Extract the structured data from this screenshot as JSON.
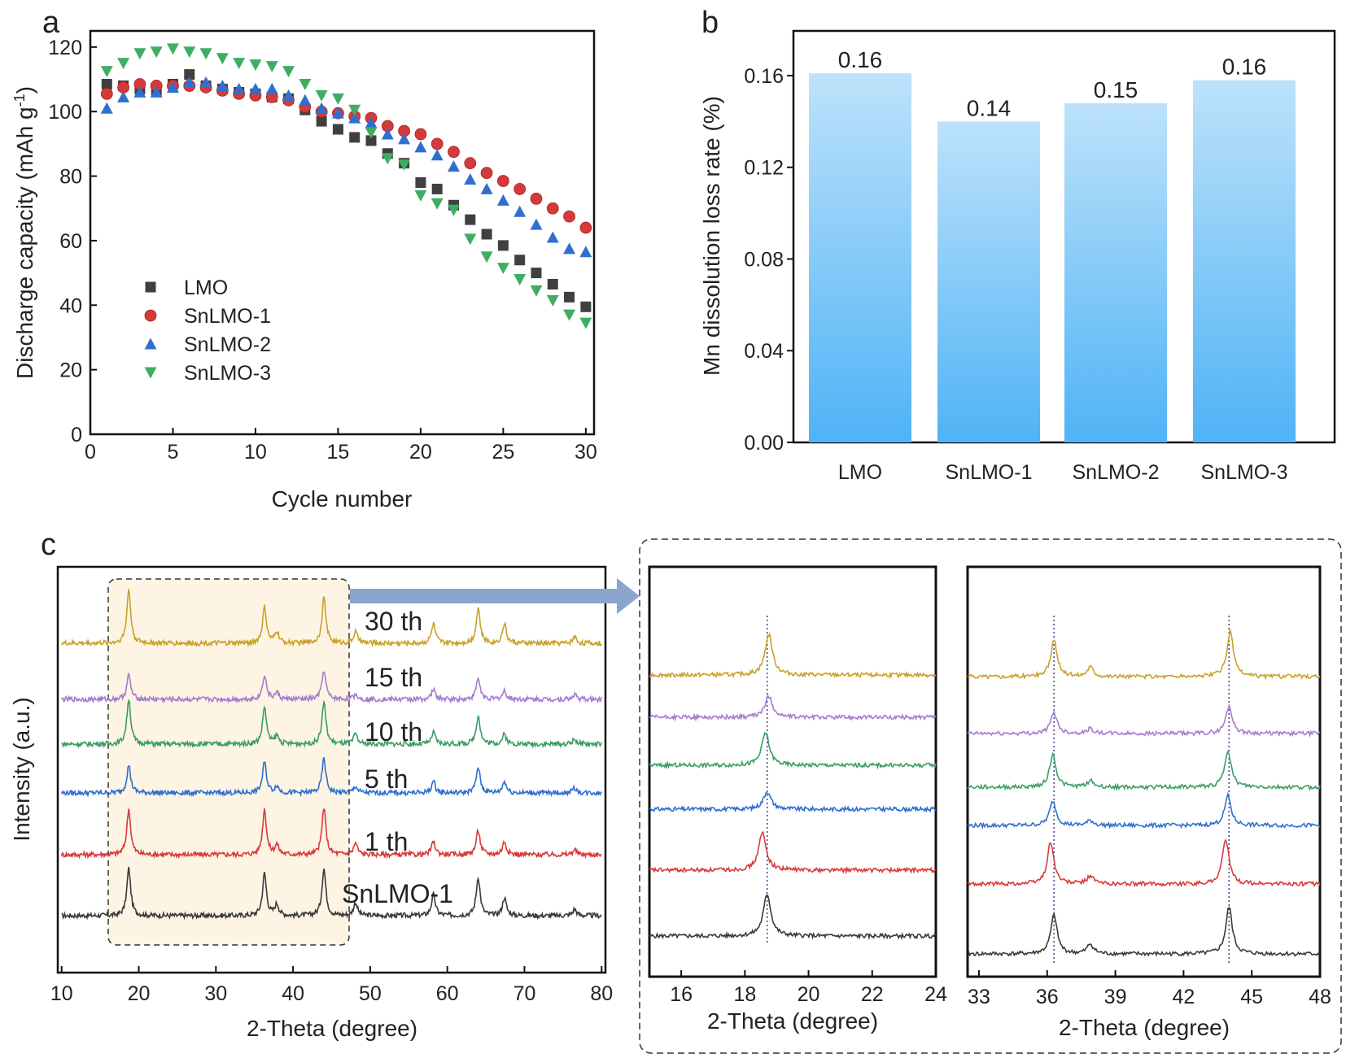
{
  "figure": {
    "panel_labels": [
      "a",
      "b",
      "c"
    ]
  },
  "chart_data": [
    {
      "panel": "a",
      "type": "scatter",
      "xlabel": "Cycle number",
      "ylabel": "Discharge capacity (mAh g",
      "ylabel_sup": "-1",
      "ylabel_tail": ")",
      "xlim": [
        0,
        30.5
      ],
      "ylim": [
        0,
        125
      ],
      "xticks": [
        0,
        5,
        10,
        15,
        20,
        25,
        30
      ],
      "yticks": [
        0,
        20,
        40,
        60,
        80,
        100,
        120
      ],
      "legend_position": "lower-left",
      "x": [
        1,
        2,
        3,
        4,
        5,
        6,
        7,
        8,
        9,
        10,
        11,
        12,
        13,
        14,
        15,
        16,
        17,
        18,
        19,
        20,
        21,
        22,
        23,
        24,
        25,
        26,
        27,
        28,
        29,
        30
      ],
      "series": [
        {
          "name": "LMO",
          "marker": "square",
          "color": "#404040",
          "values": [
            108.5,
            108,
            107,
            106.5,
            108.5,
            111.5,
            108,
            107,
            106,
            105.5,
            104.5,
            104,
            100.5,
            97,
            94.5,
            92,
            91,
            87,
            84,
            78,
            76,
            71,
            66.5,
            62,
            58.5,
            54,
            50,
            46.5,
            42.5,
            39.5
          ]
        },
        {
          "name": "SnLMO-1",
          "marker": "circle",
          "color": "#d33a3a",
          "values": [
            105.5,
            107.5,
            108.5,
            108,
            108,
            108,
            107.5,
            106.5,
            105.5,
            105,
            104.5,
            103.5,
            101.5,
            100,
            99.5,
            98.5,
            98,
            95.5,
            94,
            93,
            90,
            87.5,
            84,
            81,
            78.5,
            76,
            73,
            70,
            67.5,
            64
          ]
        },
        {
          "name": "SnLMO-2",
          "marker": "triangle-up",
          "color": "#2f6fcf",
          "values": [
            101,
            104.5,
            106,
            106,
            107.5,
            109,
            109,
            108,
            107,
            107,
            107,
            105,
            103.5,
            101,
            99.5,
            98,
            96.5,
            93,
            91.5,
            89,
            86.5,
            83,
            79,
            76,
            72.5,
            69,
            65,
            61,
            57.5,
            56.5
          ]
        },
        {
          "name": "SnLMO-3",
          "marker": "triangle-down",
          "color": "#3fae63",
          "values": [
            112.5,
            115,
            118,
            118.5,
            119.5,
            118.5,
            118,
            116.5,
            115,
            114.5,
            114,
            112.5,
            108.5,
            105,
            104,
            100.5,
            93.5,
            85.5,
            83.5,
            74,
            71.5,
            69.5,
            60.5,
            55,
            51.5,
            48,
            44.5,
            41.5,
            37,
            34.5
          ]
        }
      ]
    },
    {
      "panel": "b",
      "type": "bar",
      "ylabel": "Mn dissolution loss rate (%)",
      "categories": [
        "LMO",
        "SnLMO-1",
        "SnLMO-2",
        "SnLMO-3"
      ],
      "values": [
        0.161,
        0.14,
        0.148,
        0.158
      ],
      "data_labels": [
        "0.16",
        "0.14",
        "0.15",
        "0.16"
      ],
      "ylim": [
        0,
        0.1795
      ],
      "yticks": [
        0.0,
        0.04,
        0.08,
        0.12,
        0.16
      ],
      "ytick_labels": [
        "0.00",
        "0.04",
        "0.08",
        "0.12",
        "0.16"
      ],
      "bar_color_top": "#bde2fa",
      "bar_color_bottom": "#4fb3f6"
    },
    {
      "panel": "c",
      "type": "line",
      "xlabel": "2-Theta (degree)",
      "ylabel": "Intensity (a.u.)",
      "xlim": [
        9.5,
        80.5
      ],
      "xticks": [
        10,
        20,
        30,
        40,
        50,
        60,
        70,
        80
      ],
      "highlight_range": [
        16,
        47.5
      ],
      "peaks": [
        18.7,
        36.3,
        37.9,
        44.0,
        48.1,
        58.2,
        64.0,
        67.4,
        76.5
      ],
      "series": [
        {
          "name": "SnLMO-1",
          "color": "#3a3a3a",
          "heights": [
            58,
            52,
            14,
            58,
            16,
            26,
            48,
            22,
            8
          ]
        },
        {
          "name": "1 th",
          "color": "#d93a3a",
          "heights": [
            56,
            56,
            12,
            58,
            14,
            16,
            30,
            16,
            6
          ]
        },
        {
          "name": "5 th",
          "color": "#2f6fcf",
          "heights": [
            34,
            38,
            8,
            42,
            8,
            14,
            32,
            14,
            6
          ]
        },
        {
          "name": "10 th",
          "color": "#3a9e66",
          "heights": [
            56,
            46,
            10,
            52,
            12,
            14,
            36,
            12,
            6
          ]
        },
        {
          "name": "15 th",
          "color": "#a77bd0",
          "heights": [
            30,
            30,
            8,
            36,
            6,
            12,
            26,
            10,
            6
          ]
        },
        {
          "name": "30 th",
          "color": "#c9a227",
          "heights": [
            66,
            44,
            14,
            56,
            14,
            24,
            44,
            24,
            8
          ]
        }
      ]
    },
    {
      "panel": "c-inset-1",
      "type": "line",
      "xlabel": "2-Theta (degree)",
      "xlim": [
        15,
        24
      ],
      "xticks": [
        16,
        18,
        20,
        22,
        24
      ],
      "reference_line": 18.7,
      "series_peaks": [
        18.7,
        18.55,
        18.7,
        18.65,
        18.75,
        18.75
      ],
      "series_heights": [
        52,
        46,
        22,
        40,
        26,
        50
      ]
    },
    {
      "panel": "c-inset-2",
      "type": "line",
      "xlabel": "2-Theta (degree)",
      "xlim": [
        32.5,
        48
      ],
      "xticks": [
        33,
        36,
        39,
        42,
        45,
        48
      ],
      "reference_lines": [
        36.3,
        44.0
      ],
      "series_peaks": [
        [
          36.3,
          37.9,
          44.0
        ],
        [
          36.15,
          37.9,
          43.85
        ],
        [
          36.25,
          37.9,
          43.95
        ],
        [
          36.25,
          37.9,
          43.95
        ],
        [
          36.3,
          37.9,
          44.0
        ],
        [
          36.3,
          37.9,
          44.05
        ]
      ],
      "series_heights": [
        [
          48,
          12,
          58
        ],
        [
          52,
          10,
          56
        ],
        [
          30,
          6,
          36
        ],
        [
          40,
          8,
          46
        ],
        [
          26,
          6,
          34
        ],
        [
          44,
          12,
          56
        ]
      ]
    }
  ]
}
